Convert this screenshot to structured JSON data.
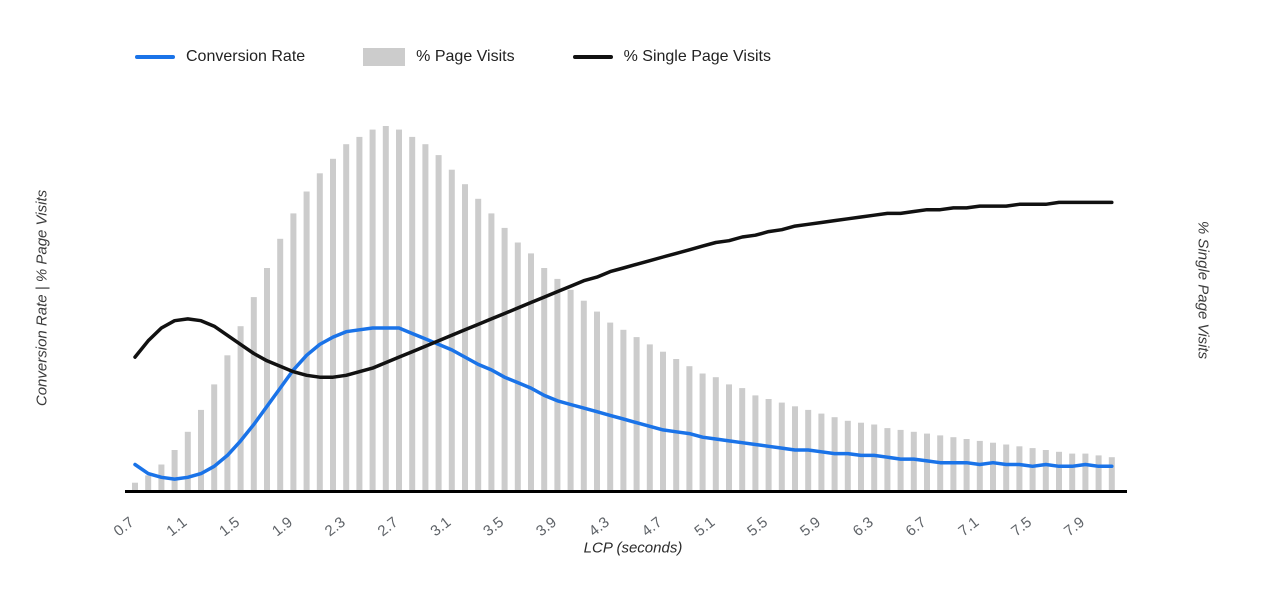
{
  "legend": [
    {
      "label": "Conversion Rate",
      "type": "line",
      "color": "#1a73e8"
    },
    {
      "label": "% Page Visits",
      "type": "bar",
      "color": "#cccccc"
    },
    {
      "label": "% Single Page Visits",
      "type": "line",
      "color": "#111111"
    }
  ],
  "axes": {
    "left_title": "Conversion Rate | % Page Visits",
    "right_title": "% Single Page Visits",
    "x_title": "LCP (seconds)",
    "x_ticks": [
      "0.7",
      "1.1",
      "1.5",
      "1.9",
      "2.3",
      "2.7",
      "3.1",
      "3.5",
      "3.9",
      "4.3",
      "4.7",
      "5.1",
      "5.5",
      "5.9",
      "6.3",
      "6.7",
      "7.1",
      "7.5",
      "7.9"
    ]
  },
  "colors": {
    "bar": "#cccccc",
    "conversion_line": "#1a73e8",
    "single_page_line": "#111111",
    "axis": "#000000",
    "tick_label": "#5f6368",
    "text": "#222222"
  },
  "chart_data": {
    "type": "combo",
    "title": "",
    "xlabel": "LCP (seconds)",
    "ylabel_left": "Conversion Rate | % Page Visits",
    "ylabel_right": "% Single Page Visits",
    "x_range": [
      0.7,
      8.1
    ],
    "x_step": 0.1,
    "x_tick_labels": [
      "0.7",
      "1.1",
      "1.5",
      "1.9",
      "2.3",
      "2.7",
      "3.1",
      "3.5",
      "3.9",
      "4.3",
      "4.7",
      "5.1",
      "5.5",
      "5.9",
      "6.3",
      "6.7",
      "7.1",
      "7.5",
      "7.9"
    ],
    "y_scale_note": "Both vertical axes are unlabeled; values estimated as percent of plot height (0-100), with the % Page Visits histogram normalized so its peak at LCP 2.6s = 100.",
    "grid": false,
    "legend_position": "top-left",
    "x": [
      0.7,
      0.8,
      0.9,
      1.0,
      1.1,
      1.2,
      1.3,
      1.4,
      1.5,
      1.6,
      1.7,
      1.8,
      1.9,
      2.0,
      2.1,
      2.2,
      2.3,
      2.4,
      2.5,
      2.6,
      2.7,
      2.8,
      2.9,
      3.0,
      3.1,
      3.2,
      3.3,
      3.4,
      3.5,
      3.6,
      3.7,
      3.8,
      3.9,
      4.0,
      4.1,
      4.2,
      4.3,
      4.4,
      4.5,
      4.6,
      4.7,
      4.8,
      4.9,
      5.0,
      5.1,
      5.2,
      5.3,
      5.4,
      5.5,
      5.6,
      5.7,
      5.8,
      5.9,
      6.0,
      6.1,
      6.2,
      6.3,
      6.4,
      6.5,
      6.6,
      6.7,
      6.8,
      6.9,
      7.0,
      7.1,
      7.2,
      7.3,
      7.4,
      7.5,
      7.6,
      7.7,
      7.8,
      7.9,
      8.0,
      8.1
    ],
    "series": [
      {
        "name": "% Page Visits",
        "type": "bar",
        "color": "#cccccc",
        "values": [
          2,
          4,
          7,
          11,
          16,
          22,
          29,
          37,
          45,
          53,
          61,
          69,
          76,
          82,
          87,
          91,
          95,
          97,
          99,
          100,
          99,
          97,
          95,
          92,
          88,
          84,
          80,
          76,
          72,
          68,
          65,
          61,
          58,
          55,
          52,
          49,
          46,
          44,
          42,
          40,
          38,
          36,
          34,
          32,
          31,
          29,
          28,
          26,
          25,
          24,
          23,
          22,
          21,
          20,
          19,
          18.5,
          18,
          17,
          16.5,
          16,
          15.5,
          15,
          14.5,
          14,
          13.5,
          13,
          12.5,
          12,
          11.5,
          11,
          10.5,
          10,
          10,
          9.5,
          9
        ]
      },
      {
        "name": "Conversion Rate",
        "type": "line",
        "color": "#1a73e8",
        "values": [
          7,
          4.5,
          3.5,
          3,
          3.5,
          4.5,
          6.5,
          9.5,
          13.5,
          18,
          23,
          28,
          33,
          37,
          40,
          42,
          43.5,
          44,
          44.5,
          44.5,
          44.5,
          43,
          41.5,
          40,
          38.5,
          36.5,
          34.5,
          33,
          31,
          29.5,
          28,
          26,
          24.5,
          23.5,
          22.5,
          21.5,
          20.5,
          19.5,
          18.5,
          17.5,
          16.5,
          16,
          15.5,
          14.5,
          14,
          13.5,
          13,
          12.5,
          12,
          11.5,
          11,
          11,
          10.5,
          10,
          10,
          9.5,
          9.5,
          9,
          8.5,
          8.5,
          8,
          7.5,
          7.5,
          7.5,
          7,
          7.5,
          7,
          7,
          6.5,
          7,
          6.5,
          6.5,
          7,
          6.5,
          6.5
        ]
      },
      {
        "name": "% Single Page Visits",
        "type": "line",
        "color": "#111111",
        "values": [
          36.5,
          41,
          44.5,
          46.5,
          47,
          46.5,
          45,
          42.5,
          40,
          37.5,
          35.5,
          34,
          32.5,
          31.5,
          31,
          31,
          31.5,
          32.5,
          33.5,
          35,
          36.5,
          38,
          39.5,
          41,
          42.5,
          44,
          45.5,
          47,
          48.5,
          50,
          51.5,
          53,
          54.5,
          56,
          57.5,
          58.5,
          60,
          61,
          62,
          63,
          64,
          65,
          66,
          67,
          68,
          68.5,
          69.5,
          70,
          71,
          71.5,
          72.5,
          73,
          73.5,
          74,
          74.5,
          75,
          75.5,
          76,
          76,
          76.5,
          77,
          77,
          77.5,
          77.5,
          78,
          78,
          78,
          78.5,
          78.5,
          78.5,
          79,
          79,
          79,
          79,
          79
        ]
      }
    ]
  }
}
